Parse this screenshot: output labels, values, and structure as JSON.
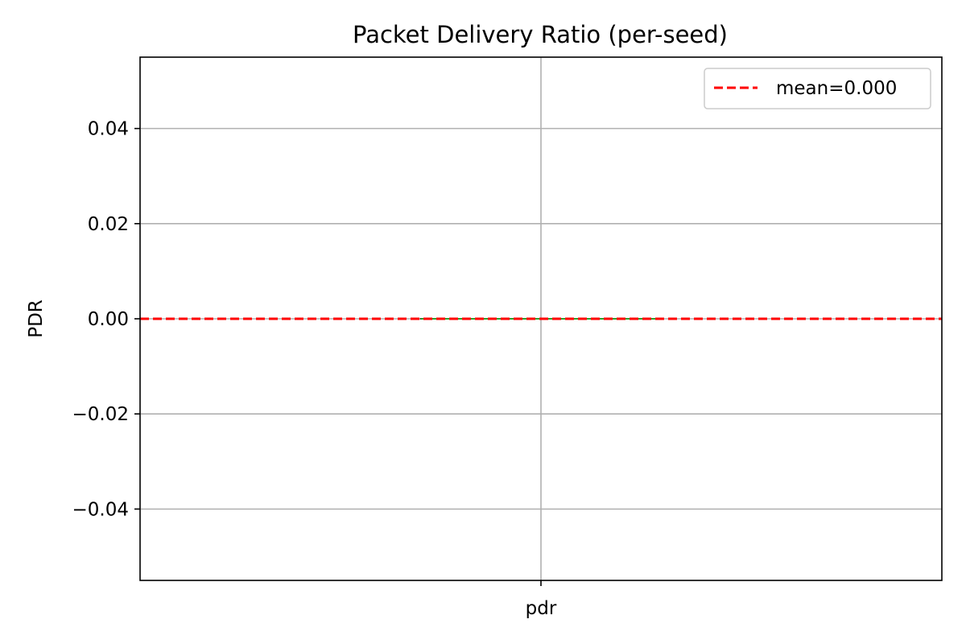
{
  "chart_data": {
    "type": "box",
    "title": "Packet Delivery Ratio (per-seed)",
    "xlabel": "",
    "ylabel": "PDR",
    "categories": [
      "pdr"
    ],
    "boxes": [
      {
        "category": "pdr",
        "min": 0.0,
        "q1": 0.0,
        "median": 0.0,
        "q3": 0.0,
        "max": 0.0
      }
    ],
    "reference_lines": [
      {
        "label": "mean=0.000",
        "value": 0.0,
        "style": "dashed",
        "color": "#ff0000"
      }
    ],
    "ylim": [
      -0.055,
      0.055
    ],
    "yticks": [
      -0.04,
      -0.02,
      0.0,
      0.02,
      0.04
    ],
    "ytick_labels": [
      "−0.04",
      "−0.02",
      "0.00",
      "0.02",
      "0.04"
    ],
    "grid": true,
    "legend_position": "top-right",
    "colors": {
      "median": "#2ca02c",
      "mean_line": "#ff0000",
      "grid": "#b0b0b0"
    }
  }
}
